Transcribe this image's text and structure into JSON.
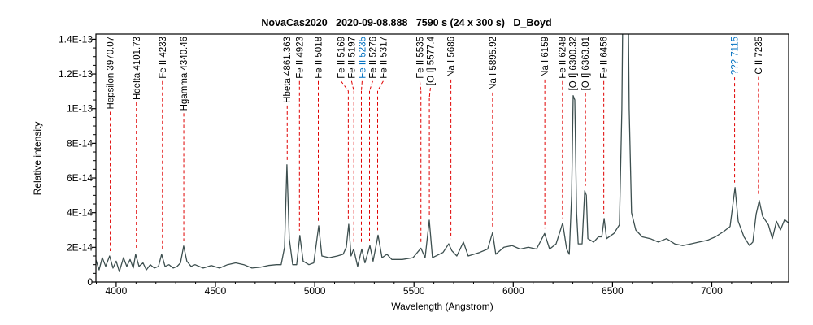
{
  "chart_data": {
    "type": "line",
    "title": "NovaCas2020   2020-09-08.888   7590 s (24 x 300 s)   D_Boyd",
    "xlabel": "Wavelength (Angstrom)",
    "ylabel": "Relative intensity",
    "xlim": [
      3898,
      7387
    ],
    "ylim": [
      0,
      1.43e-13
    ],
    "grid": false,
    "x_ticks": [
      4000,
      4500,
      5000,
      5500,
      6000,
      6500,
      7000
    ],
    "x_tick_labels": [
      "4000",
      "4500",
      "5000",
      "5500",
      "6000",
      "6500",
      "7000"
    ],
    "y_ticks": [
      0,
      2e-14,
      4e-14,
      6e-14,
      8e-14,
      1e-13,
      1.2e-13,
      1.4e-13
    ],
    "y_tick_labels": [
      "0",
      "2E-14",
      "4E-14",
      "6E-14",
      "8E-14",
      "1E-13",
      "1.2E-13",
      "1.4E-13"
    ],
    "series_color": "#3d4f4f",
    "marker_color": "#e00000",
    "series": [
      {
        "x": [
          3898,
          3914,
          3930,
          3947,
          3967,
          3984,
          4000,
          4016,
          4037,
          4053,
          4070,
          4086,
          4098,
          4115,
          4135,
          4152,
          4172,
          4192,
          4213,
          4229,
          4246,
          4266,
          4287,
          4307,
          4324,
          4340,
          4356,
          4377,
          4397,
          4438,
          4479,
          4520,
          4561,
          4602,
          4643,
          4684,
          4725,
          4766,
          4807,
          4831,
          4848,
          4860,
          4872,
          4889,
          4909,
          4925,
          4942,
          4971,
          4995,
          5020,
          5036,
          5073,
          5114,
          5143,
          5159,
          5171,
          5183,
          5196,
          5216,
          5237,
          5253,
          5278,
          5294,
          5319,
          5339,
          5364,
          5388,
          5441,
          5495,
          5535,
          5556,
          5577,
          5593,
          5646,
          5675,
          5691,
          5716,
          5749,
          5773,
          5830,
          5871,
          5896,
          5912,
          5953,
          5994,
          6035,
          6076,
          6117,
          6158,
          6183,
          6216,
          6249,
          6269,
          6282,
          6294,
          6302,
          6310,
          6319,
          6327,
          6347,
          6360,
          6368,
          6376,
          6405,
          6429,
          6446,
          6458,
          6470,
          6507,
          6535,
          6547,
          6560,
          6572,
          6584,
          6596,
          6617,
          6650,
          6690,
          6731,
          6772,
          6813,
          6854,
          6895,
          6936,
          6977,
          7018,
          7059,
          7092,
          7117,
          7133,
          7162,
          7190,
          7207,
          7223,
          7239,
          7256,
          7285,
          7305,
          7326,
          7346,
          7367,
          7387
        ],
        "y": [
          1.27e-14,
          7e-15,
          1.4e-14,
          9e-15,
          1.5e-14,
          8e-15,
          1.2e-14,
          6e-15,
          1.4e-14,
          9e-15,
          1.3e-14,
          8e-15,
          1.6e-14,
          9e-15,
          1.1e-14,
          7e-15,
          1e-14,
          8e-15,
          9e-15,
          1.6e-14,
          9e-15,
          1e-14,
          8e-15,
          9e-15,
          1.1e-14,
          2.07e-14,
          1.2e-14,
          9e-15,
          1e-14,
          8e-15,
          9.5e-15,
          8e-15,
          1e-14,
          1.1e-14,
          1e-14,
          8e-15,
          8.5e-15,
          9.5e-15,
          1e-14,
          1e-14,
          2e-14,
          6.76e-14,
          2.5e-14,
          1e-14,
          1e-14,
          2.68e-14,
          1.2e-14,
          1e-14,
          1.1e-14,
          3.24e-14,
          1.5e-14,
          1.4e-14,
          1.5e-14,
          1.6e-14,
          2e-14,
          3.33e-14,
          1.5e-14,
          1.9e-14,
          9e-15,
          1.9e-14,
          1.1e-14,
          2.1e-14,
          1.2e-14,
          2.7e-14,
          1.4e-14,
          1.6e-14,
          1.3e-14,
          1.3e-14,
          1.4e-14,
          1.95e-14,
          1.4e-14,
          3.57e-14,
          1.4e-14,
          1.7e-14,
          2.2e-14,
          1.8e-14,
          1.5e-14,
          2.3e-14,
          1.5e-14,
          1.7e-14,
          1.9e-14,
          2.85e-14,
          1.6e-14,
          2e-14,
          2.1e-14,
          1.9e-14,
          2e-14,
          1.9e-14,
          2.8e-14,
          1.9e-14,
          2.2e-14,
          3.4e-14,
          1.9e-14,
          1.6e-14,
          5e-14,
          1.075e-13,
          1.05e-13,
          4e-14,
          2.2e-14,
          2.2e-14,
          5.26e-14,
          5e-14,
          2.5e-14,
          2.3e-14,
          2.6e-14,
          2.6e-14,
          3.66e-14,
          2.5e-14,
          2.8e-14,
          3.3e-14,
          1e-13,
          2.5e-13,
          2.5e-13,
          1e-13,
          4e-14,
          3e-14,
          2.6e-14,
          2.5e-14,
          2.3e-14,
          2.5e-14,
          2.2e-14,
          2.1e-14,
          2.2e-14,
          2.3e-14,
          2.4e-14,
          2.6e-14,
          2.9e-14,
          3.2e-14,
          5.45e-14,
          3.5e-14,
          2.6e-14,
          2.1e-14,
          2.3e-14,
          3.9e-14,
          4.7e-14,
          3.8e-14,
          3.3e-14,
          2.5e-14,
          3.5e-14,
          3e-14,
          3.6e-14,
          3.4e-14
        ]
      }
    ],
    "annotations": [
      {
        "label": "Hepsilon 3970.07",
        "x": 3970.07,
        "color": "#000000"
      },
      {
        "label": "Hdelta 4101.73",
        "x": 4101.73,
        "color": "#000000"
      },
      {
        "label": "Fe II 4233",
        "x": 4233,
        "color": "#000000"
      },
      {
        "label": "Hgamma 4340.46",
        "x": 4340.46,
        "color": "#000000"
      },
      {
        "label": "Hbeta 4861.363",
        "x": 4861.363,
        "color": "#000000"
      },
      {
        "label": "Fe II 4923",
        "x": 4923,
        "color": "#000000"
      },
      {
        "label": "Fe II 5018",
        "x": 5018,
        "color": "#000000"
      },
      {
        "label": "Fe II 5169",
        "x": 5169,
        "color": "#000000"
      },
      {
        "label": "Fe II 5197",
        "x": 5197,
        "color": "#000000"
      },
      {
        "label": "Fe II 5235",
        "x": 5235,
        "color": "#0070c0"
      },
      {
        "label": "Fe II 5276",
        "x": 5276,
        "color": "#000000"
      },
      {
        "label": "Fe II 5317",
        "x": 5317,
        "color": "#000000"
      },
      {
        "label": "Fe II 5535",
        "x": 5535,
        "color": "#000000"
      },
      {
        "label": "[O I] 5577.4",
        "x": 5577.4,
        "color": "#000000"
      },
      {
        "label": "Na I 5686",
        "x": 5686,
        "color": "#000000"
      },
      {
        "label": "Na I 5895.92",
        "x": 5895.92,
        "color": "#000000"
      },
      {
        "label": "Na I 6159",
        "x": 6159,
        "color": "#000000"
      },
      {
        "label": "Fe II 6248",
        "x": 6248,
        "color": "#000000"
      },
      {
        "label": "[O I] 6300.32",
        "x": 6300.32,
        "color": "#000000"
      },
      {
        "label": "[O I] 6363.81",
        "x": 6363.81,
        "color": "#000000"
      },
      {
        "label": "Fe II 6456",
        "x": 6456,
        "color": "#000000"
      },
      {
        "label": "??? 7115",
        "x": 7115,
        "color": "#0070c0"
      },
      {
        "label": "C II 7235",
        "x": 7235,
        "color": "#000000"
      }
    ]
  }
}
